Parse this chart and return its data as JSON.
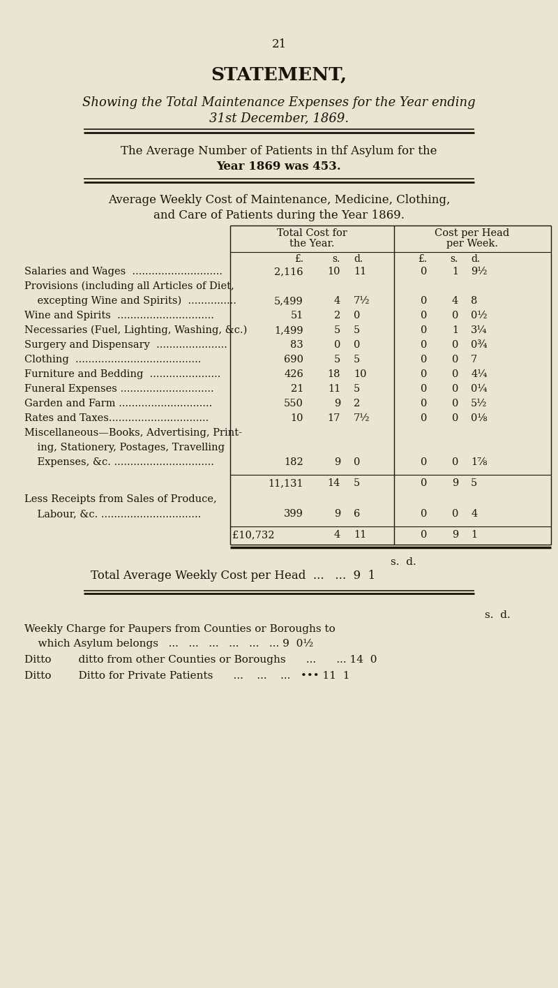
{
  "bg_color": "#EAE4D3",
  "text_color": "#1a1208",
  "page_number": "21",
  "title": "STATEMENT,",
  "subtitle1": "Showing the Total Maintenance Expenses for the Year ending",
  "subtitle2": "31st December, 1869.",
  "avg1": "The Average Number of Patients in thf Asylum for the",
  "avg2": "Year 1869 was 453.",
  "wc1": "Average Weekly Cost of Maintenance, Medicine, Clothing,",
  "wc2": "and Care of Patients during the Year 1869.",
  "col_h1a": "Total Cost for",
  "col_h1b": "the Year.",
  "col_h2a": "Cost per Head",
  "col_h2b": "per Week.",
  "rows": [
    {
      "label1": "Salaries and Wages  ............................",
      "label2": null,
      "label3": null,
      "tp": "2,116",
      "ts": "10",
      "td": "11",
      "hp": "0",
      "hs": "1",
      "hd": "9½"
    },
    {
      "label1": "Provisions (including all Articles of Diet,",
      "label2": "    excepting Wine and Spirits)  ...............",
      "label3": null,
      "tp": "5,499",
      "ts": "4",
      "td": "7½",
      "hp": "0",
      "hs": "4",
      "hd": "8"
    },
    {
      "label1": "Wine and Spirits  ..............................",
      "label2": null,
      "label3": null,
      "tp": "51",
      "ts": "2",
      "td": "0",
      "hp": "0",
      "hs": "0",
      "hd": "0½"
    },
    {
      "label1": "Necessaries (Fuel, Lighting, Washing, &c.)",
      "label2": null,
      "label3": null,
      "tp": "1,499",
      "ts": "5",
      "td": "5",
      "hp": "0",
      "hs": "1",
      "hd": "3¼"
    },
    {
      "label1": "Surgery and Dispensary  ......................",
      "label2": null,
      "label3": null,
      "tp": "83",
      "ts": "0",
      "td": "0",
      "hp": "0",
      "hs": "0",
      "hd": "0¾"
    },
    {
      "label1": "Clothing  .......................................",
      "label2": null,
      "label3": null,
      "tp": "690",
      "ts": "5",
      "td": "5",
      "hp": "0",
      "hs": "0",
      "hd": "7"
    },
    {
      "label1": "Furniture and Bedding  ......................",
      "label2": null,
      "label3": null,
      "tp": "426",
      "ts": "18",
      "td": "10",
      "hp": "0",
      "hs": "0",
      "hd": "4¼"
    },
    {
      "label1": "Funeral Expenses .............................",
      "label2": null,
      "label3": null,
      "tp": "21",
      "ts": "11",
      "td": "5",
      "hp": "0",
      "hs": "0",
      "hd": "0¼"
    },
    {
      "label1": "Garden and Farm .............................",
      "label2": null,
      "label3": null,
      "tp": "550",
      "ts": "9",
      "td": "2",
      "hp": "0",
      "hs": "0",
      "hd": "5½"
    },
    {
      "label1": "Rates and Taxes...............................",
      "label2": null,
      "label3": null,
      "tp": "10",
      "ts": "17",
      "td": "7½",
      "hp": "0",
      "hs": "0",
      "hd": "0⅛"
    },
    {
      "label1": "Miscellaneous—Books, Advertising, Print-",
      "label2": "    ing, Stationery, Postages, Travelling",
      "label3": "    Expenses, &c. ...............................",
      "tp": "182",
      "ts": "9",
      "td": "0",
      "hp": "0",
      "hs": "0",
      "hd": "1⅞"
    }
  ],
  "sub_tp": "11,131",
  "sub_ts": "14",
  "sub_td": "5",
  "sub_hp": "0",
  "sub_hs": "9",
  "sub_hd": "5",
  "less1": "Less Receipts from Sales of Produce,",
  "less2": "    Labour, &c. ...............................",
  "less_tp": "399",
  "less_ts": "9",
  "less_td": "6",
  "less_hp": "0",
  "less_hs": "0",
  "less_hd": "4",
  "tot_label": "£10,732",
  "tot_ts": "4",
  "tot_td": "11",
  "tot_hp": "0",
  "tot_hs": "9",
  "tot_hd": "1"
}
